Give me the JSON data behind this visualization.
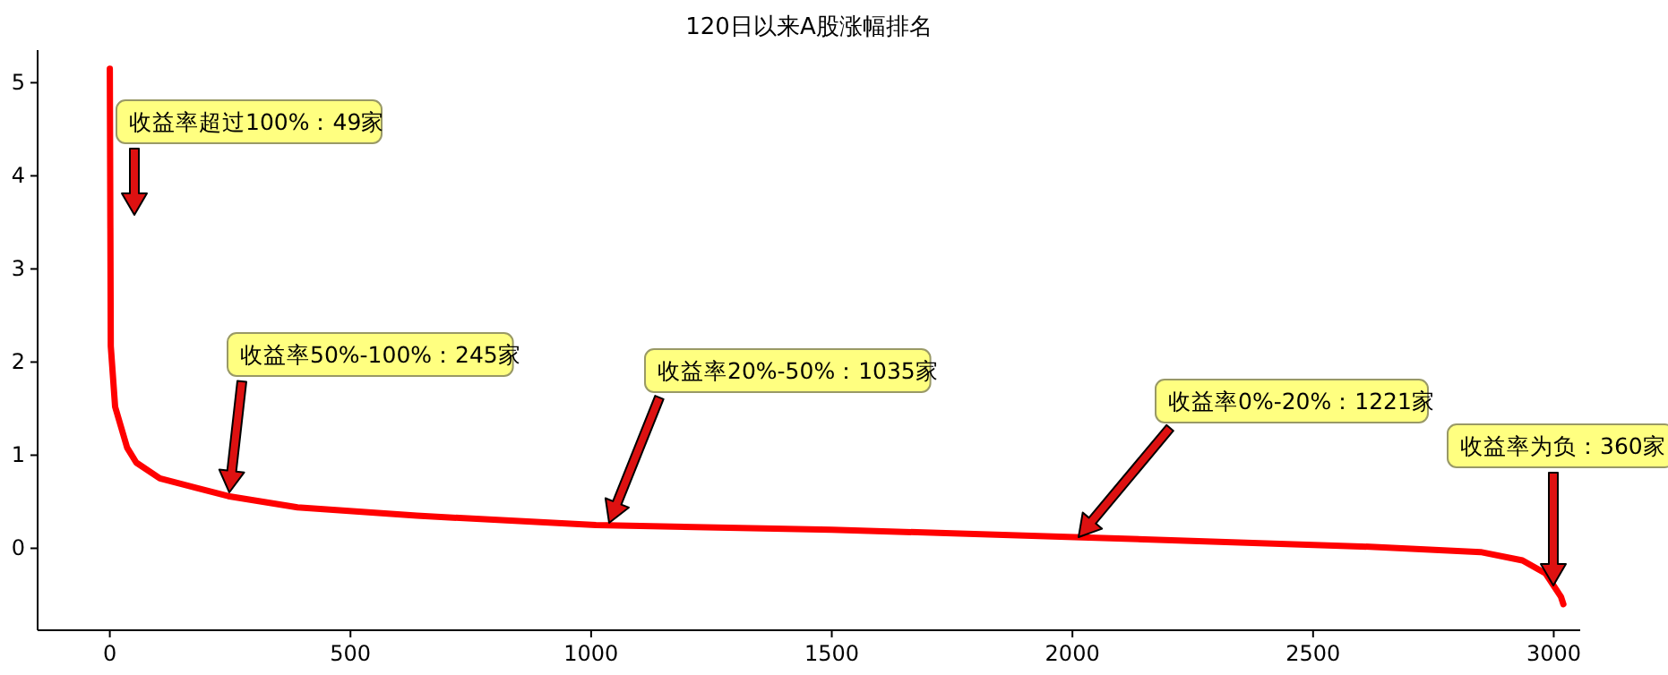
{
  "chart_data": {
    "type": "line",
    "title": "120日以来A股涨幅排名",
    "x": [
      0,
      2,
      11,
      36,
      55,
      104,
      179,
      246,
      390,
      638,
      1010,
      1500,
      2004,
      2600,
      2848,
      2935,
      2983,
      3015,
      3020
    ],
    "series": [
      {
        "color": "#ff0000",
        "values": [
          5.15,
          2.17,
          1.52,
          1.08,
          0.92,
          0.75,
          0.65,
          0.56,
          0.44,
          0.35,
          0.25,
          0.2,
          0.12,
          0.02,
          -0.04,
          -0.13,
          -0.27,
          -0.52,
          -0.6
        ]
      }
    ],
    "xlim": [
      -150,
      3055
    ],
    "ylim": [
      -0.88,
      5.35
    ],
    "xticks": [
      0,
      500,
      1000,
      1500,
      2000,
      2500,
      3000
    ],
    "yticks": [
      0,
      1,
      2,
      3,
      4,
      5
    ],
    "grid": false,
    "marker": "none",
    "line_style": "solid",
    "annotations": [
      "收益率超过100%：49家",
      "收益率50%-100%：245家",
      "收益率20%-50%：1035家",
      "收益率0%-20%：1221家",
      "收益率为负：360家"
    ]
  }
}
